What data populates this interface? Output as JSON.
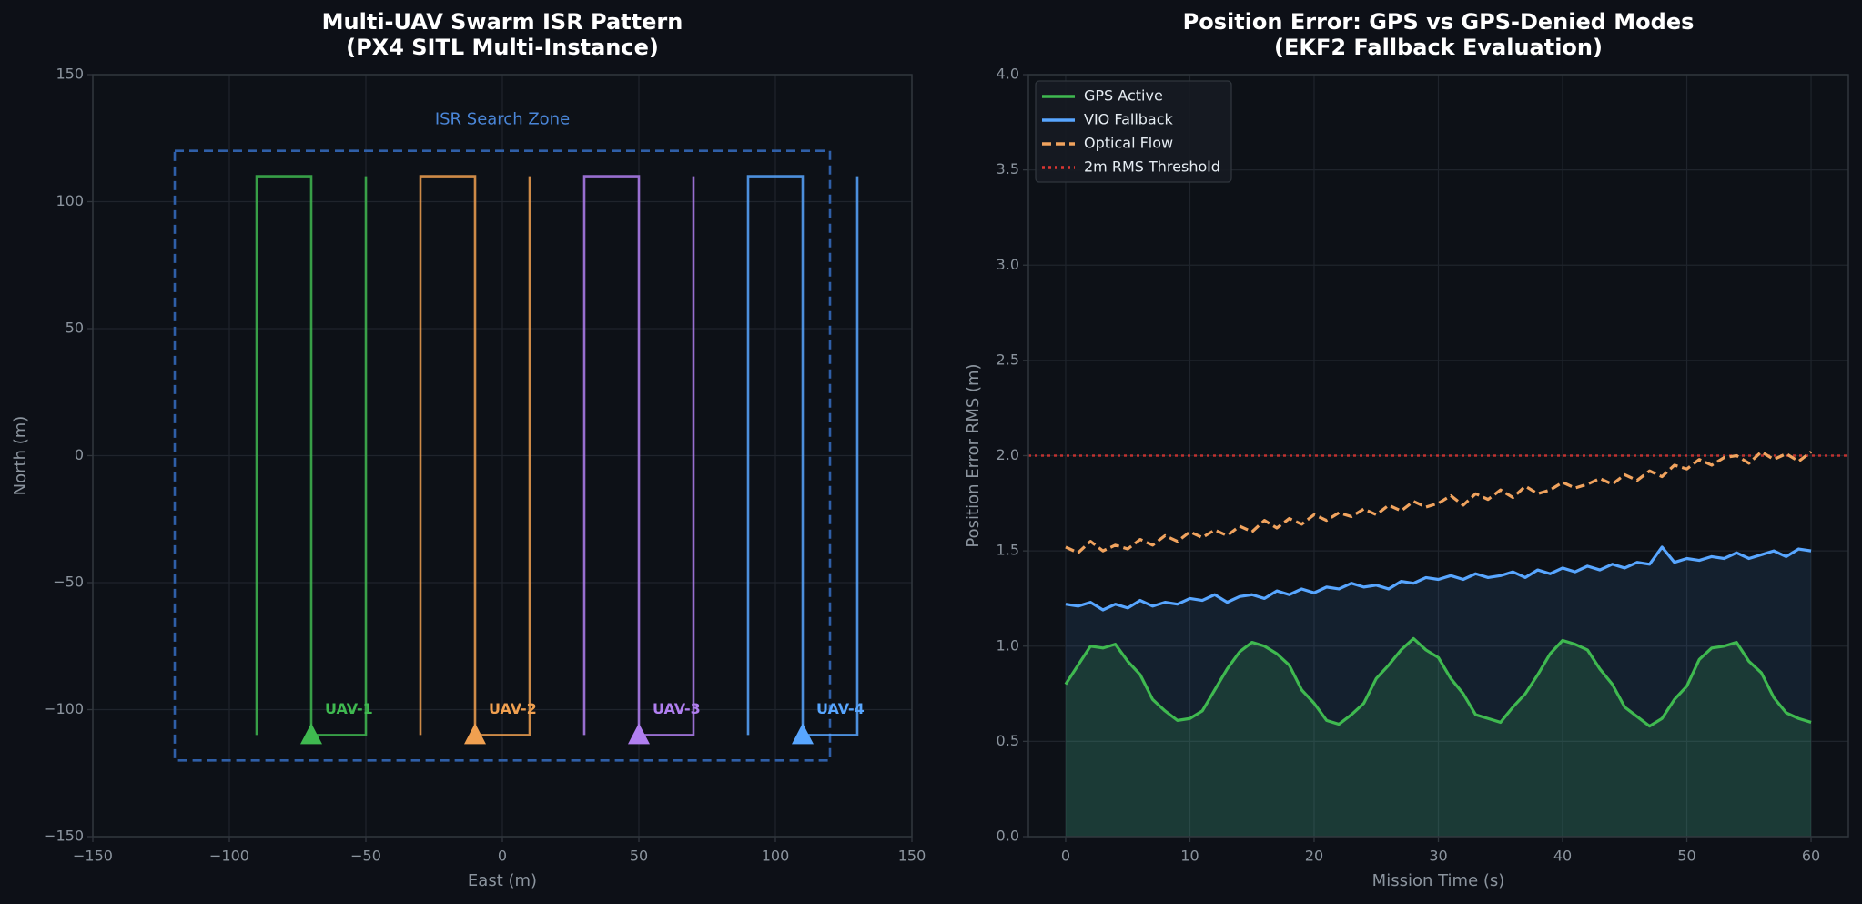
{
  "chart_data": [
    {
      "type": "line",
      "title": "Multi-UAV Swarm ISR Pattern",
      "subtitle": "(PX4 SITL Multi-Instance)",
      "xlabel": "East (m)",
      "ylabel": "North (m)",
      "xlim": [
        -150,
        150
      ],
      "ylim": [
        -150,
        150
      ],
      "xticks": [
        {
          "value": -150,
          "label": "−150"
        },
        {
          "value": -100,
          "label": "−100"
        },
        {
          "value": -50,
          "label": "−50"
        },
        0,
        50,
        100,
        150
      ],
      "yticks": [
        {
          "value": -150,
          "label": "−150"
        },
        {
          "value": -100,
          "label": "−100"
        },
        {
          "value": -50,
          "label": "−50"
        },
        0,
        50,
        100,
        150
      ],
      "grid": true,
      "zone": {
        "label": "ISR Search Zone",
        "x": [
          -120,
          120
        ],
        "y": [
          -120,
          120
        ],
        "color": "#2f5fa8"
      },
      "series": [
        {
          "name": "UAV-1",
          "color": "#3fb950",
          "x": [
            -90,
            -90,
            -70,
            -70,
            -50,
            -50
          ],
          "values": [
            -110,
            110,
            110,
            -110,
            -110,
            110
          ],
          "marker": {
            "x": -70,
            "y": -110
          }
        },
        {
          "name": "UAV-2",
          "color": "#f0a050",
          "x": [
            -30,
            -30,
            -10,
            -10,
            10,
            10
          ],
          "values": [
            -110,
            110,
            110,
            -110,
            -110,
            110
          ],
          "marker": {
            "x": -10,
            "y": -110
          }
        },
        {
          "name": "UAV-3",
          "color": "#b07ff0",
          "x": [
            30,
            30,
            50,
            50,
            70,
            70
          ],
          "values": [
            -110,
            110,
            110,
            -110,
            -110,
            110
          ],
          "marker": {
            "x": 50,
            "y": -110
          }
        },
        {
          "name": "UAV-4",
          "color": "#58a6ff",
          "x": [
            90,
            90,
            110,
            110,
            130,
            130
          ],
          "values": [
            -110,
            110,
            110,
            -110,
            -110,
            110
          ],
          "marker": {
            "x": 110,
            "y": -110
          }
        }
      ]
    },
    {
      "type": "line",
      "title": "Position Error: GPS vs GPS-Denied Modes",
      "subtitle": "(EKF2 Fallback Evaluation)",
      "xlabel": "Mission Time (s)",
      "ylabel": "Position Error RMS (m)",
      "xlim": [
        -3,
        63
      ],
      "ylim": [
        0,
        4
      ],
      "xticks": [
        0,
        10,
        20,
        30,
        40,
        50,
        60
      ],
      "yticks": [
        {
          "value": 0,
          "label": "0.0"
        },
        0.5,
        {
          "value": 1,
          "label": "1.0"
        },
        1.5,
        {
          "value": 2,
          "label": "2.0"
        },
        2.5,
        {
          "value": 3,
          "label": "3.0"
        },
        3.5,
        {
          "value": 4,
          "label": "4.0"
        }
      ],
      "grid": true,
      "legend": "upper left",
      "x": [
        0,
        1,
        2,
        3,
        4,
        5,
        6,
        7,
        8,
        9,
        10,
        11,
        12,
        13,
        14,
        15,
        16,
        17,
        18,
        19,
        20,
        21,
        22,
        23,
        24,
        25,
        26,
        27,
        28,
        29,
        30,
        31,
        32,
        33,
        34,
        35,
        36,
        37,
        38,
        39,
        40,
        41,
        42,
        43,
        44,
        45,
        46,
        47,
        48,
        49,
        50,
        51,
        52,
        53,
        54,
        55,
        56,
        57,
        58,
        59,
        60
      ],
      "series": [
        {
          "name": "GPS Active",
          "color": "#3fb950",
          "style": "solid",
          "fill": true,
          "values": [
            0.8,
            0.9,
            1.0,
            0.99,
            1.01,
            0.92,
            0.85,
            0.72,
            0.66,
            0.61,
            0.62,
            0.66,
            0.77,
            0.88,
            0.97,
            1.02,
            1.0,
            0.96,
            0.9,
            0.77,
            0.7,
            0.61,
            0.59,
            0.64,
            0.7,
            0.83,
            0.9,
            0.98,
            1.04,
            0.98,
            0.94,
            0.83,
            0.75,
            0.64,
            0.62,
            0.6,
            0.68,
            0.75,
            0.85,
            0.96,
            1.03,
            1.01,
            0.98,
            0.88,
            0.8,
            0.68,
            0.63,
            0.58,
            0.62,
            0.72,
            0.79,
            0.93,
            0.99,
            1.0,
            1.02,
            0.92,
            0.86,
            0.73,
            0.65,
            0.62,
            0.6
          ]
        },
        {
          "name": "VIO Fallback",
          "color": "#58a6ff",
          "style": "solid",
          "fill": true,
          "values": [
            1.22,
            1.21,
            1.23,
            1.19,
            1.22,
            1.2,
            1.24,
            1.21,
            1.23,
            1.22,
            1.25,
            1.24,
            1.27,
            1.23,
            1.26,
            1.27,
            1.25,
            1.29,
            1.27,
            1.3,
            1.28,
            1.31,
            1.3,
            1.33,
            1.31,
            1.32,
            1.3,
            1.34,
            1.33,
            1.36,
            1.35,
            1.37,
            1.35,
            1.38,
            1.36,
            1.37,
            1.39,
            1.36,
            1.4,
            1.38,
            1.41,
            1.39,
            1.42,
            1.4,
            1.43,
            1.41,
            1.44,
            1.43,
            1.52,
            1.44,
            1.46,
            1.45,
            1.47,
            1.46,
            1.49,
            1.46,
            1.48,
            1.5,
            1.47,
            1.51,
            1.5
          ]
        },
        {
          "name": "Optical Flow",
          "color": "#f0a35e",
          "style": "dashed",
          "fill": false,
          "values": [
            1.52,
            1.49,
            1.55,
            1.5,
            1.53,
            1.51,
            1.56,
            1.53,
            1.58,
            1.55,
            1.6,
            1.57,
            1.61,
            1.58,
            1.63,
            1.6,
            1.66,
            1.62,
            1.67,
            1.64,
            1.69,
            1.66,
            1.7,
            1.68,
            1.72,
            1.69,
            1.74,
            1.71,
            1.76,
            1.73,
            1.75,
            1.79,
            1.74,
            1.8,
            1.77,
            1.82,
            1.78,
            1.84,
            1.8,
            1.82,
            1.86,
            1.83,
            1.85,
            1.88,
            1.85,
            1.9,
            1.87,
            1.92,
            1.89,
            1.95,
            1.93,
            1.98,
            1.95,
            1.99,
            2.0,
            1.96,
            2.02,
            1.98,
            2.01,
            1.97,
            2.02
          ]
        }
      ],
      "threshold": {
        "name": "2m RMS Threshold",
        "value": 2,
        "color": "#da3633",
        "style": "dotted"
      }
    }
  ]
}
